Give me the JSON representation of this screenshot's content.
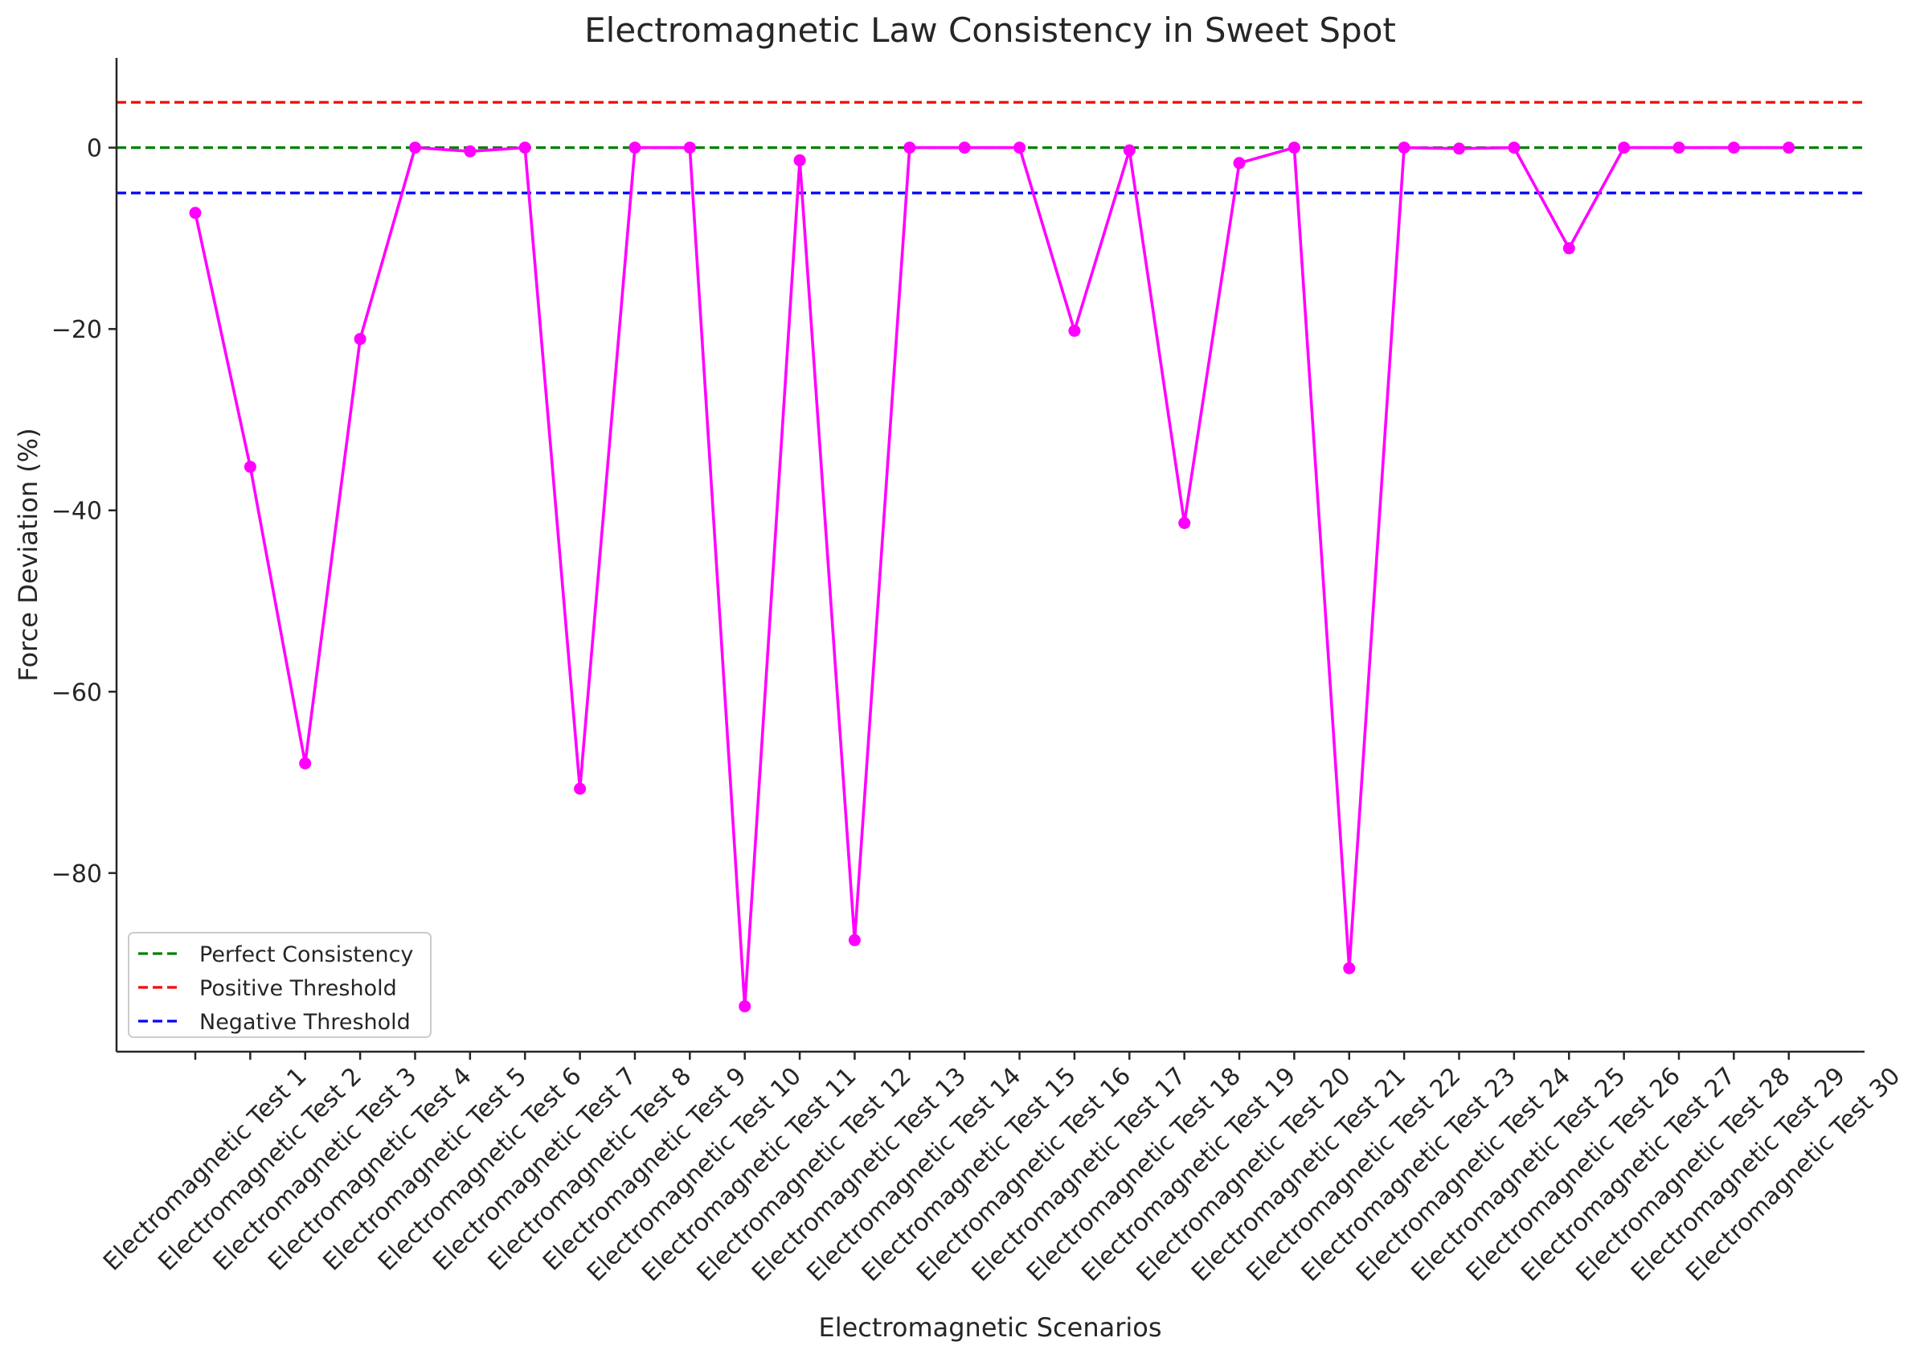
{
  "chart_data": {
    "type": "line",
    "title": "Electromagnetic Law Consistency in Sweet Spot",
    "xlabel": "Electromagnetic Scenarios",
    "ylabel": "Force Deviation (%)",
    "ylim": [
      -99.7,
      9.9
    ],
    "yticks": [
      0,
      -20,
      -40,
      -60,
      -80
    ],
    "yticklabels": [
      "0",
      "−20",
      "−40",
      "−60",
      "−80"
    ],
    "grid": false,
    "legend_position": "lower-left",
    "categories": [
      "Electromagnetic Test 1",
      "Electromagnetic Test 2",
      "Electromagnetic Test 3",
      "Electromagnetic Test 4",
      "Electromagnetic Test 5",
      "Electromagnetic Test 6",
      "Electromagnetic Test 7",
      "Electromagnetic Test 8",
      "Electromagnetic Test 9",
      "Electromagnetic Test 10",
      "Electromagnetic Test 11",
      "Electromagnetic Test 12",
      "Electromagnetic Test 13",
      "Electromagnetic Test 14",
      "Electromagnetic Test 15",
      "Electromagnetic Test 16",
      "Electromagnetic Test 17",
      "Electromagnetic Test 18",
      "Electromagnetic Test 19",
      "Electromagnetic Test 20",
      "Electromagnetic Test 21",
      "Electromagnetic Test 22",
      "Electromagnetic Test 23",
      "Electromagnetic Test 24",
      "Electromagnetic Test 25",
      "Electromagnetic Test 26",
      "Electromagnetic Test 27",
      "Electromagnetic Test 28",
      "Electromagnetic Test 29",
      "Electromagnetic Test 30"
    ],
    "series": [
      {
        "color": "#ff00ff",
        "values": [
          -7.2,
          -35.2,
          -67.9,
          -21.1,
          0.0,
          -0.4,
          0.0,
          -70.7,
          0.0,
          0.0,
          -94.7,
          -1.4,
          -87.4,
          0.0,
          0.0,
          0.0,
          -20.2,
          -0.3,
          -41.4,
          -1.7,
          0.0,
          -90.5,
          0.0,
          -0.1,
          0.0,
          -11.1,
          0.0,
          0.0,
          0.0,
          0.0
        ]
      }
    ],
    "reference_lines": [
      {
        "name": "Perfect Consistency",
        "y": 0,
        "color": "#008000",
        "style": "dashed"
      },
      {
        "name": "Positive Threshold",
        "y": 5,
        "color": "#ff0000",
        "style": "dashed"
      },
      {
        "name": "Negative Threshold",
        "y": -5,
        "color": "#0000ff",
        "style": "dashed"
      }
    ]
  }
}
